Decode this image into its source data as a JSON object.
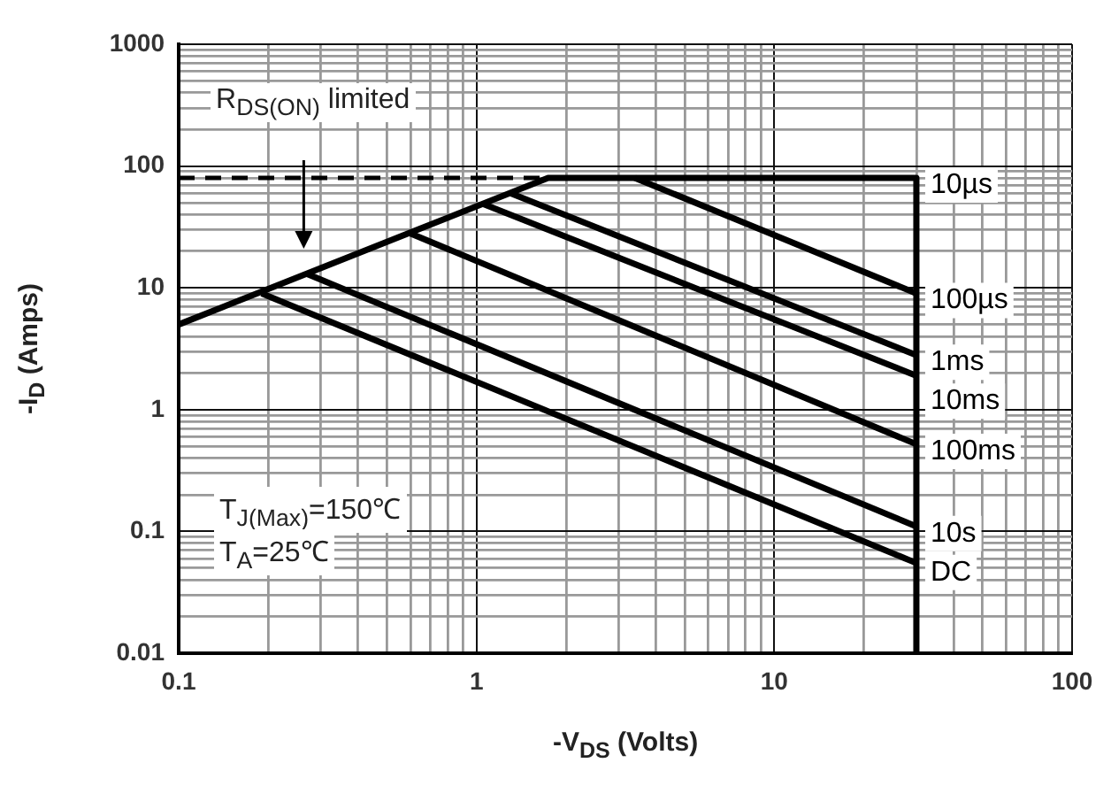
{
  "chart_data": {
    "type": "line",
    "xlabel": "-V$_{DS}$ (Volts)",
    "ylabel": "-I$_{D}$ (Amps)",
    "log": "xy",
    "xlim": [
      0.1,
      100
    ],
    "ylim": [
      0.01,
      1000
    ],
    "xticks": [
      0.1,
      {
        "value": 0.2,
        "label": null
      },
      {
        "value": 0.3,
        "label": null
      },
      {
        "value": 0.4,
        "label": null
      },
      {
        "value": 0.5,
        "label": null
      },
      {
        "value": 0.6,
        "label": null
      },
      {
        "value": 0.7,
        "label": null
      },
      {
        "value": 0.8,
        "label": null
      },
      {
        "value": 0.9,
        "label": null
      },
      1,
      {
        "value": 2,
        "label": null
      },
      {
        "value": 3,
        "label": null
      },
      {
        "value": 4,
        "label": null
      },
      {
        "value": 5,
        "label": null
      },
      {
        "value": 6,
        "label": null
      },
      {
        "value": 7,
        "label": null
      },
      {
        "value": 8,
        "label": null
      },
      {
        "value": 9,
        "label": null
      },
      10,
      {
        "value": 20,
        "label": null
      },
      {
        "value": 30,
        "label": null
      },
      {
        "value": 40,
        "label": null
      },
      {
        "value": 50,
        "label": null
      },
      {
        "value": 60,
        "label": null
      },
      {
        "value": 70,
        "label": null
      },
      {
        "value": 80,
        "label": null
      },
      {
        "value": 90,
        "label": null
      },
      100
    ],
    "yticks": [
      0.01,
      {
        "value": 0.02,
        "label": null
      },
      {
        "value": 0.03,
        "label": null
      },
      {
        "value": 0.04,
        "label": null
      },
      {
        "value": 0.05,
        "label": null
      },
      {
        "value": 0.06,
        "label": null
      },
      {
        "value": 0.07,
        "label": null
      },
      {
        "value": 0.08,
        "label": null
      },
      {
        "value": 0.09,
        "label": null
      },
      0.1,
      {
        "value": 0.2,
        "label": null
      },
      {
        "value": 0.3,
        "label": null
      },
      {
        "value": 0.4,
        "label": null
      },
      {
        "value": 0.5,
        "label": null
      },
      {
        "value": 0.6,
        "label": null
      },
      {
        "value": 0.7,
        "label": null
      },
      {
        "value": 0.8,
        "label": null
      },
      {
        "value": 0.9,
        "label": null
      },
      1,
      {
        "value": 2,
        "label": null
      },
      {
        "value": 3,
        "label": null
      },
      {
        "value": 4,
        "label": null
      },
      {
        "value": 5,
        "label": null
      },
      {
        "value": 6,
        "label": null
      },
      {
        "value": 7,
        "label": null
      },
      {
        "value": 8,
        "label": null
      },
      {
        "value": 9,
        "label": null
      },
      10,
      {
        "value": 20,
        "label": null
      },
      {
        "value": 30,
        "label": null
      },
      {
        "value": 40,
        "label": null
      },
      {
        "value": 50,
        "label": null
      },
      {
        "value": 60,
        "label": null
      },
      {
        "value": 70,
        "label": null
      },
      {
        "value": 80,
        "label": null
      },
      {
        "value": 90,
        "label": null
      },
      100,
      {
        "value": 200,
        "label": null
      },
      {
        "value": 300,
        "label": null
      },
      {
        "value": 400,
        "label": null
      },
      {
        "value": 500,
        "label": null
      },
      {
        "value": 600,
        "label": null
      },
      {
        "value": 700,
        "label": null
      },
      {
        "value": 800,
        "label": null
      },
      {
        "value": 900,
        "label": null
      },
      1000
    ],
    "grid": true,
    "legend": false,
    "marker": "none",
    "line_style": "solid",
    "annotations": [
      "R$_{DS(ON)}$ limited",
      "T$_{J(Max)}$=150℃",
      "T$_{A}$=25℃"
    ],
    "series": [
      {
        "name": "10µs",
        "color": "#000000",
        "x": [
          0.1,
          1.74,
          30,
          30
        ],
        "values": [
          5,
          80,
          80,
          0.01
        ]
      },
      {
        "name": "100µs",
        "color": "#000000",
        "x": [
          3.4,
          30
        ],
        "values": [
          80,
          9
        ]
      },
      {
        "name": "1ms",
        "color": "#000000",
        "x": [
          1.3,
          30
        ],
        "values": [
          60,
          2.8
        ]
      },
      {
        "name": "10ms",
        "color": "#000000",
        "x": [
          1.05,
          30
        ],
        "values": [
          49,
          1.9
        ]
      },
      {
        "name": "100ms",
        "color": "#000000",
        "x": [
          0.6,
          30
        ],
        "values": [
          28,
          0.52
        ]
      },
      {
        "name": "10s",
        "color": "#000000",
        "x": [
          0.27,
          30
        ],
        "values": [
          13,
          0.11
        ]
      },
      {
        "name": "DC",
        "color": "#000000",
        "x": [
          0.19,
          30
        ],
        "values": [
          9,
          0.055
        ]
      },
      {
        "color": "#000000",
        "line_style": "dashed",
        "x": [
          0.1,
          1.74
        ],
        "values": [
          80,
          80
        ]
      }
    ]
  }
}
